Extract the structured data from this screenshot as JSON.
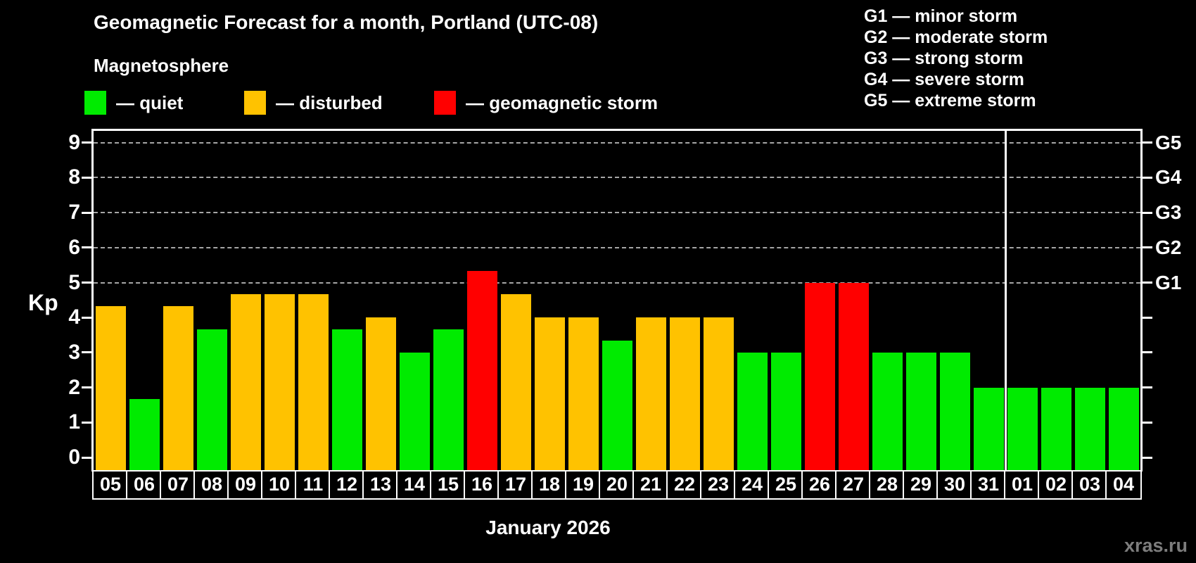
{
  "header": {
    "title": "Geomagnetic Forecast for a month, Portland (UTC-08)",
    "subtitle": "Magnetosphere"
  },
  "status_legend": [
    {
      "name": "quiet",
      "label": "— quiet",
      "color": "#00EB00"
    },
    {
      "name": "disturbed",
      "label": "— disturbed",
      "color": "#FFC200"
    },
    {
      "name": "storm",
      "label": "— geomagnetic storm",
      "color": "#FF0000"
    }
  ],
  "storm_scale": {
    "items": [
      "G1 — minor storm",
      "G2 — moderate storm",
      "G3 — strong storm",
      "G4 — severe storm",
      "G5 — extreme storm"
    ]
  },
  "watermark": "xras.ru",
  "chart_data": {
    "type": "bar",
    "title": "Geomagnetic Forecast for a month, Portland (UTC-08)",
    "ylabel": "Kp",
    "xlabel": "January 2026",
    "ylim": [
      0,
      9
    ],
    "yticks": [
      0,
      1,
      2,
      3,
      4,
      5,
      6,
      7,
      8,
      9
    ],
    "gridlines_at_kp": [
      5,
      6,
      7,
      8,
      9
    ],
    "grid": "dashed horizontal at storm levels only",
    "legend_position": "top",
    "right_axis": [
      {
        "label": "G1",
        "kp": 5
      },
      {
        "label": "G2",
        "kp": 6
      },
      {
        "label": "G3",
        "kp": 7
      },
      {
        "label": "G4",
        "kp": 8
      },
      {
        "label": "G5",
        "kp": 9
      }
    ],
    "status_colors": {
      "quiet": "#00EB00",
      "disturbed": "#FFC200",
      "storm": "#FF0000"
    },
    "month_separator_after_index": 26,
    "bars": [
      {
        "date": "05",
        "kp": 4.33,
        "status": "disturbed"
      },
      {
        "date": "06",
        "kp": 1.67,
        "status": "quiet"
      },
      {
        "date": "07",
        "kp": 4.33,
        "status": "disturbed"
      },
      {
        "date": "08",
        "kp": 3.67,
        "status": "quiet"
      },
      {
        "date": "09",
        "kp": 4.67,
        "status": "disturbed"
      },
      {
        "date": "10",
        "kp": 4.67,
        "status": "disturbed"
      },
      {
        "date": "11",
        "kp": 4.67,
        "status": "disturbed"
      },
      {
        "date": "12",
        "kp": 3.67,
        "status": "quiet"
      },
      {
        "date": "13",
        "kp": 4.0,
        "status": "disturbed"
      },
      {
        "date": "14",
        "kp": 3.0,
        "status": "quiet"
      },
      {
        "date": "15",
        "kp": 3.67,
        "status": "quiet"
      },
      {
        "date": "16",
        "kp": 5.33,
        "status": "storm"
      },
      {
        "date": "17",
        "kp": 4.67,
        "status": "disturbed"
      },
      {
        "date": "18",
        "kp": 4.0,
        "status": "disturbed"
      },
      {
        "date": "19",
        "kp": 4.0,
        "status": "disturbed"
      },
      {
        "date": "20",
        "kp": 3.33,
        "status": "quiet"
      },
      {
        "date": "21",
        "kp": 4.0,
        "status": "disturbed"
      },
      {
        "date": "22",
        "kp": 4.0,
        "status": "disturbed"
      },
      {
        "date": "23",
        "kp": 4.0,
        "status": "disturbed"
      },
      {
        "date": "24",
        "kp": 3.0,
        "status": "quiet"
      },
      {
        "date": "25",
        "kp": 3.0,
        "status": "quiet"
      },
      {
        "date": "26",
        "kp": 5.0,
        "status": "storm"
      },
      {
        "date": "27",
        "kp": 5.0,
        "status": "storm"
      },
      {
        "date": "28",
        "kp": 3.0,
        "status": "quiet"
      },
      {
        "date": "29",
        "kp": 3.0,
        "status": "quiet"
      },
      {
        "date": "30",
        "kp": 3.0,
        "status": "quiet"
      },
      {
        "date": "31",
        "kp": 2.0,
        "status": "quiet"
      },
      {
        "date": "01",
        "kp": 2.0,
        "status": "quiet"
      },
      {
        "date": "02",
        "kp": 2.0,
        "status": "quiet"
      },
      {
        "date": "03",
        "kp": 2.0,
        "status": "quiet"
      },
      {
        "date": "04",
        "kp": 2.0,
        "status": "quiet"
      }
    ]
  }
}
